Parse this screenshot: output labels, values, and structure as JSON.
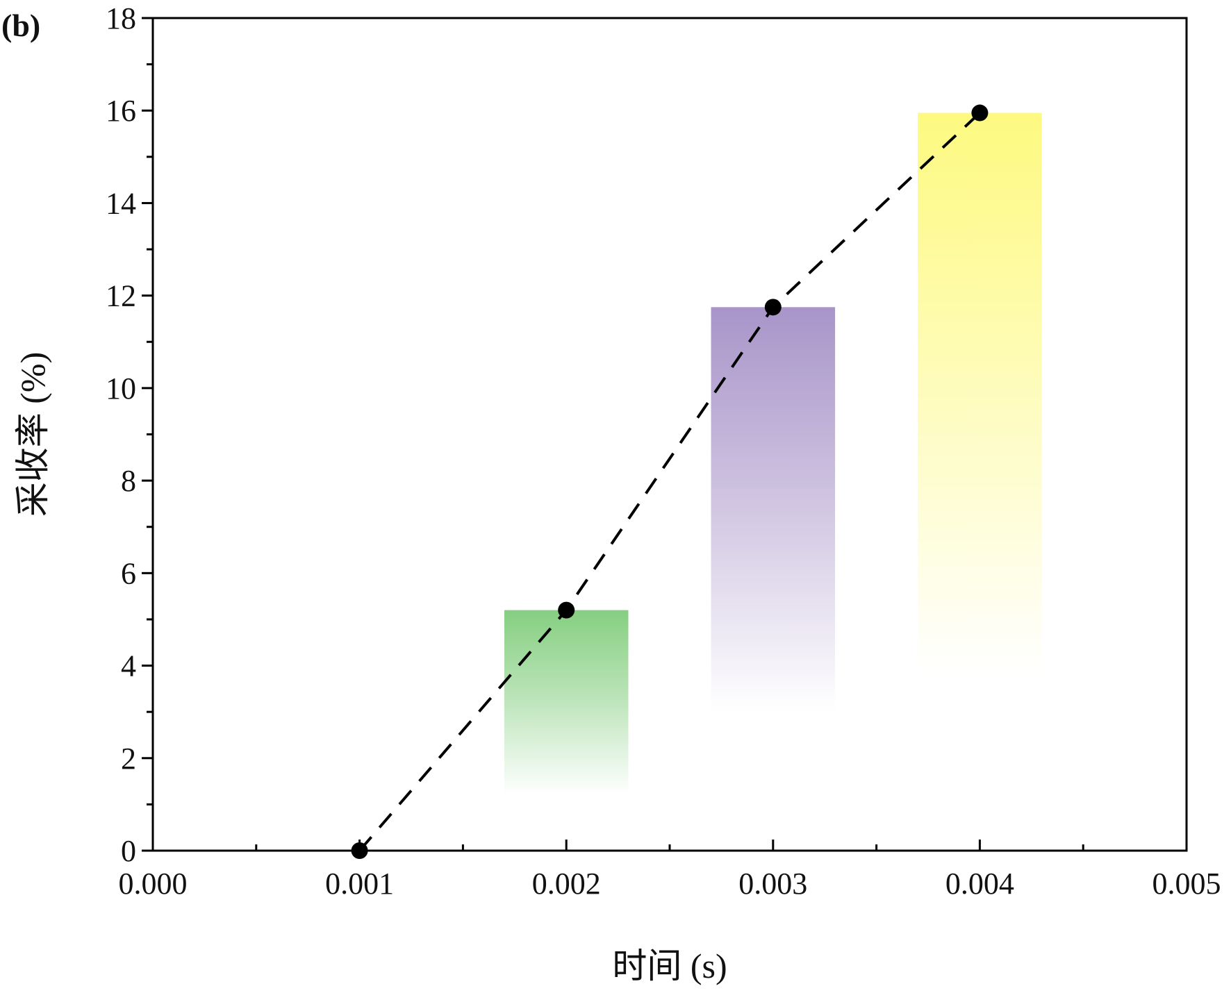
{
  "panel_label": "(b)",
  "chart_data": {
    "type": "line",
    "xlabel": "时间 (s)",
    "ylabel": "采收率 (%)",
    "xlim": [
      0,
      0.005
    ],
    "ylim": [
      0,
      18
    ],
    "x_ticks": [
      "0.000",
      "0.001",
      "0.002",
      "0.003",
      "0.004",
      "0.005"
    ],
    "y_ticks": [
      "0",
      "2",
      "4",
      "6",
      "8",
      "10",
      "12",
      "14",
      "16",
      "18"
    ],
    "grid": false,
    "series": [
      {
        "x": [
          0.001,
          0.002,
          0.003,
          0.004
        ],
        "y": [
          0.0,
          5.2,
          11.75,
          15.95
        ],
        "line_style": "dashed",
        "marker": "circle",
        "color": "#000000"
      }
    ],
    "shaded_bars": [
      {
        "x_center": 0.002,
        "top": 5.2,
        "color": "#7fcc7a"
      },
      {
        "x_center": 0.003,
        "top": 11.75,
        "color": "#a48fc6"
      },
      {
        "x_center": 0.004,
        "top": 15.95,
        "color": "#fdf97a"
      }
    ]
  }
}
